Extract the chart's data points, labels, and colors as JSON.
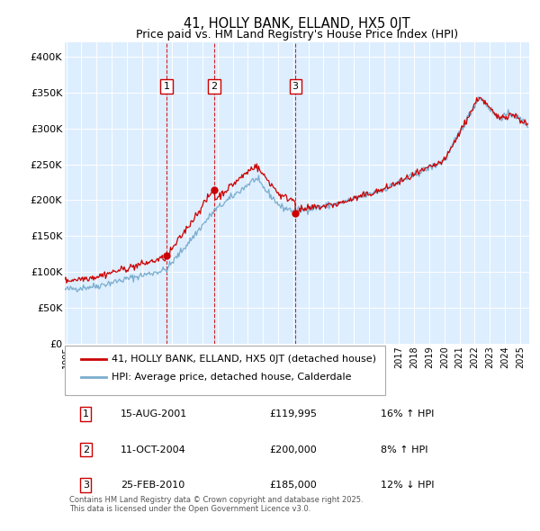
{
  "title": "41, HOLLY BANK, ELLAND, HX5 0JT",
  "subtitle": "Price paid vs. HM Land Registry's House Price Index (HPI)",
  "ylabel_ticks": [
    "£0",
    "£50K",
    "£100K",
    "£150K",
    "£200K",
    "£250K",
    "£300K",
    "£350K",
    "£400K"
  ],
  "ytick_values": [
    0,
    50000,
    100000,
    150000,
    200000,
    250000,
    300000,
    350000,
    400000
  ],
  "ylim": [
    0,
    420000
  ],
  "xlim_start": 1994.9,
  "xlim_end": 2025.6,
  "transactions": [
    {
      "num": 1,
      "date": "15-AUG-2001",
      "price": 119995,
      "pct": "16%",
      "dir": "↑",
      "year": 2001.62
    },
    {
      "num": 2,
      "date": "11-OCT-2004",
      "price": 200000,
      "pct": "8%",
      "dir": "↑",
      "year": 2004.78
    },
    {
      "num": 3,
      "date": "25-FEB-2010",
      "price": 185000,
      "pct": "12%",
      "dir": "↓",
      "year": 2010.14
    }
  ],
  "legend_label_red": "41, HOLLY BANK, ELLAND, HX5 0JT (detached house)",
  "legend_label_blue": "HPI: Average price, detached house, Calderdale",
  "footnote": "Contains HM Land Registry data © Crown copyright and database right 2025.\nThis data is licensed under the Open Government Licence v3.0.",
  "red_color": "#cc0000",
  "blue_color": "#7aadce",
  "bg_color": "#ddeeff",
  "grid_color": "#ffffff",
  "vline_color": "#cc0000",
  "chart_height_ratio": 1.7,
  "bottom_height_ratio": 1.0
}
